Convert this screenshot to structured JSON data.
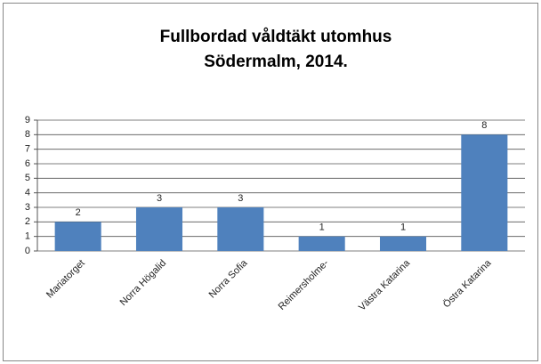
{
  "chart_data": {
    "type": "bar",
    "title": [
      "Fullbordad våldtäkt utomhus",
      "Södermalm, 2014."
    ],
    "categories": [
      "Mariatorget",
      "Norra Högalid",
      "Norra Sofia",
      "Reimersholme-",
      "Västra Katarina",
      "Östra Katarina"
    ],
    "values": [
      2,
      3,
      3,
      1,
      1,
      8
    ],
    "color": "#4f81bd",
    "ylim": [
      0,
      9
    ],
    "yticks": [
      0,
      1,
      2,
      3,
      4,
      5,
      6,
      7,
      8,
      9
    ],
    "grid": true
  }
}
